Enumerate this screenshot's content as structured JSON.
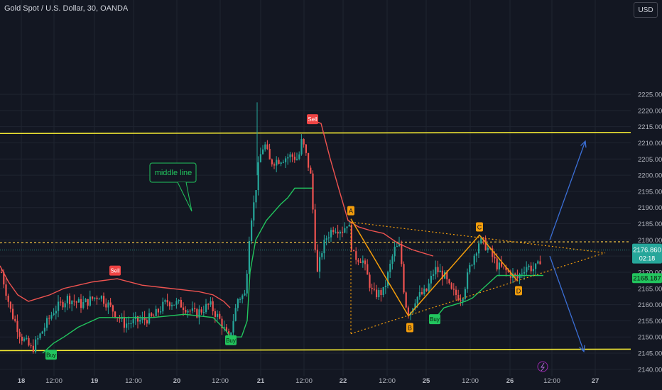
{
  "chart_data": {
    "type": "candlestick",
    "title": "Gold Spot / U.S. Dollar, 30, OANDA",
    "currency_button": "USD",
    "ylim": [
      2137,
      2229
    ],
    "y_ticks": [
      2140,
      2145,
      2150,
      2155,
      2160,
      2165,
      2170,
      2175,
      2180,
      2185,
      2190,
      2195,
      2200,
      2205,
      2210,
      2215,
      2220,
      2225
    ],
    "y_tick_labels": [
      "2140.000",
      "2145.000",
      "2150.000",
      "2155.000",
      "2160.000",
      "2165.000",
      "2170.000",
      "2175.000",
      "2180.000",
      "2185.000",
      "2190.000",
      "2195.000",
      "2200.000",
      "2205.000",
      "2210.000",
      "2215.000",
      "2220.000",
      "2225.000"
    ],
    "x_ticks": [
      "18",
      "12:00",
      "19",
      "12:00",
      "20",
      "12:00",
      "21",
      "12:00",
      "22",
      "12:00",
      "25",
      "12:00",
      "26",
      "12:00",
      "27"
    ],
    "bold_x_ticks": [
      "18",
      "19",
      "20",
      "21",
      "22",
      "25",
      "26",
      "27"
    ],
    "price_label": {
      "value": "2176.860",
      "countdown": "02:18",
      "price": 2176.86
    },
    "support_label": {
      "value": "2168.187",
      "price": 2168.187
    },
    "horizontal_levels": [
      {
        "name": "upper-channel",
        "price": 2213,
        "color": "#f2e833"
      },
      {
        "name": "lower-channel",
        "price": 2146,
        "color": "#f2e833"
      },
      {
        "name": "middle-line",
        "price": 2179.2,
        "color": "#f5c542",
        "style": "dashed"
      }
    ],
    "callout": {
      "text": "middle line",
      "color": "#22c55e"
    },
    "signals": [
      {
        "text": "Sell",
        "kind": "sell",
        "bar": 162,
        "price": 2170.5
      },
      {
        "text": "Sell",
        "kind": "sell",
        "bar": 440,
        "price": 2217.3
      },
      {
        "text": "Buy",
        "kind": "buy",
        "bar": 72,
        "price": 2144.5
      },
      {
        "text": "Buy",
        "kind": "buy",
        "bar": 325,
        "price": 2149
      },
      {
        "text": "Buy",
        "kind": "buy",
        "bar": 612,
        "price": 2155.5
      }
    ],
    "pattern_points": [
      {
        "label": "A",
        "price": 2186.5,
        "bar": 494
      },
      {
        "label": "B",
        "price": 2156.5,
        "bar": 575
      },
      {
        "label": "C",
        "price": 2181.5,
        "bar": 675
      },
      {
        "label": "D",
        "price": 2167.5,
        "bar": 728
      }
    ],
    "triangle": {
      "apex_price": 2176,
      "upper_start_price": 2185.5,
      "lower_start_price": 2151
    },
    "projections": [
      {
        "name": "up-target",
        "from_price": 2180,
        "to_price": 2210.5
      },
      {
        "name": "down-target",
        "from_price": 2175,
        "to_price": 2145.5
      }
    ],
    "colors": {
      "up": "#26a69a",
      "down": "#ef5350",
      "background": "#131722",
      "grid": "#1f2430",
      "trail_down": "#ef5350",
      "trail_up": "#22c55e",
      "pattern": "#f59e0b",
      "projection": "#3b6fd6"
    }
  }
}
